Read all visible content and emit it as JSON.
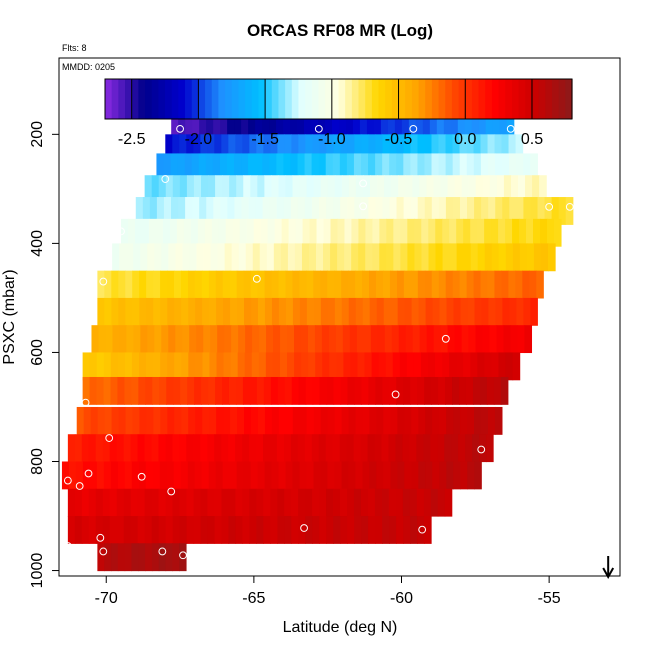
{
  "chart_data": {
    "type": "heatmap",
    "title": "ORCAS RF08 MR (Log)",
    "flights_label": "Flts: 8",
    "date_label": "MMDD: 0205",
    "xlabel": "Latitude (deg N)",
    "ylabel": "PSXC (mbar)",
    "xlim": [
      -71.6,
      -52.6
    ],
    "ylim": [
      1010,
      60
    ],
    "x_ticks": [
      -70,
      -65,
      -60,
      -55
    ],
    "x_tick_labels": [
      "-70",
      "-65",
      "-60",
      "-55"
    ],
    "y_ticks": [
      200,
      400,
      600,
      800,
      1000
    ],
    "y_tick_labels": [
      "200",
      "400",
      "600",
      "800",
      "1000"
    ],
    "colorbar": {
      "range": [
        -2.7,
        0.8
      ],
      "ticks": [
        -2.5,
        -2.0,
        -1.5,
        -1.0,
        -0.5,
        0.0,
        0.5
      ],
      "tick_labels": [
        "-2.5",
        "-2.0",
        "-1.5",
        "-1.0",
        "-0.5",
        "0.0",
        "0.5"
      ],
      "colors": [
        "#8b2be2",
        "#00008b",
        "#0000cd",
        "#1e90ff",
        "#00bfff",
        "#e0ffff",
        "#ffffe0",
        "#ffd700",
        "#ffa500",
        "#ff4500",
        "#ff0000",
        "#cd0000",
        "#8b1a1a"
      ]
    },
    "rows": [
      {
        "p": 195,
        "xmin": -67.8,
        "xmax": -56.2,
        "vstart": -2.6,
        "vend": -1.7
      },
      {
        "p": 225,
        "xmin": -68.0,
        "xmax": -55.9,
        "vstart": -2.1,
        "vend": -1.3
      },
      {
        "p": 260,
        "xmin": -68.3,
        "xmax": -55.4,
        "vstart": -1.75,
        "vend": -1.15
      },
      {
        "p": 300,
        "xmin": -68.7,
        "xmax": -55.1,
        "vstart": -1.4,
        "vend": -0.9
      },
      {
        "p": 340,
        "xmin": -69.0,
        "xmax": -54.2,
        "vstart": -1.35,
        "vend": -0.7
      },
      {
        "p": 380,
        "xmin": -69.5,
        "xmax": -54.6,
        "vstart": -1.15,
        "vend": -0.65
      },
      {
        "p": 425,
        "xmin": -69.8,
        "xmax": -54.8,
        "vstart": -1.1,
        "vend": -0.55
      },
      {
        "p": 475,
        "xmin": -70.3,
        "xmax": -55.2,
        "vstart": -0.75,
        "vend": -0.15
      },
      {
        "p": 525,
        "xmin": -70.3,
        "xmax": -55.4,
        "vstart": -0.55,
        "vend": 0.05
      },
      {
        "p": 575,
        "xmin": -70.5,
        "xmax": -55.6,
        "vstart": -0.45,
        "vend": 0.3
      },
      {
        "p": 625,
        "xmin": -70.8,
        "xmax": -56.0,
        "vstart": -0.6,
        "vend": 0.5
      },
      {
        "p": 670,
        "xmin": -70.8,
        "xmax": -56.4,
        "vstart": -0.2,
        "vend": 0.6
      },
      {
        "p": 725,
        "xmin": -71.0,
        "xmax": -56.6,
        "vstart": -0.1,
        "vend": 0.6
      },
      {
        "p": 775,
        "xmin": -71.3,
        "xmax": -56.9,
        "vstart": 0.1,
        "vend": 0.6
      },
      {
        "p": 825,
        "xmin": -71.5,
        "xmax": -57.3,
        "vstart": 0.15,
        "vend": 0.6
      },
      {
        "p": 875,
        "xmin": -71.3,
        "xmax": -58.3,
        "vstart": 0.35,
        "vend": 0.55
      },
      {
        "p": 925,
        "xmin": -71.3,
        "xmax": -59.0,
        "vstart": 0.45,
        "vend": 0.55
      },
      {
        "p": 975,
        "xmin": -70.3,
        "xmax": -67.3,
        "vstart": 0.6,
        "vend": 0.7
      }
    ],
    "markers": [
      {
        "lat": -67.5,
        "p": 190
      },
      {
        "lat": -62.8,
        "p": 190
      },
      {
        "lat": -59.6,
        "p": 190
      },
      {
        "lat": -56.3,
        "p": 190
      },
      {
        "lat": -68.0,
        "p": 282
      },
      {
        "lat": -61.3,
        "p": 290
      },
      {
        "lat": -61.3,
        "p": 332
      },
      {
        "lat": -55.0,
        "p": 333
      },
      {
        "lat": -54.3,
        "p": 333
      },
      {
        "lat": -69.5,
        "p": 378
      },
      {
        "lat": -70.1,
        "p": 470
      },
      {
        "lat": -64.9,
        "p": 465
      },
      {
        "lat": -58.5,
        "p": 575
      },
      {
        "lat": -60.2,
        "p": 677
      },
      {
        "lat": -70.7,
        "p": 692
      },
      {
        "lat": -69.9,
        "p": 757
      },
      {
        "lat": -57.3,
        "p": 778
      },
      {
        "lat": -70.6,
        "p": 822
      },
      {
        "lat": -68.8,
        "p": 828
      },
      {
        "lat": -71.3,
        "p": 835
      },
      {
        "lat": -70.9,
        "p": 845
      },
      {
        "lat": -67.8,
        "p": 855
      },
      {
        "lat": -63.3,
        "p": 922
      },
      {
        "lat": -59.3,
        "p": 925
      },
      {
        "lat": -70.2,
        "p": 940
      },
      {
        "lat": -71.3,
        "p": 955
      },
      {
        "lat": -70.1,
        "p": 965
      },
      {
        "lat": -68.1,
        "p": 965
      },
      {
        "lat": -67.4,
        "p": 972
      }
    ],
    "arrow_lat": -53.0
  }
}
